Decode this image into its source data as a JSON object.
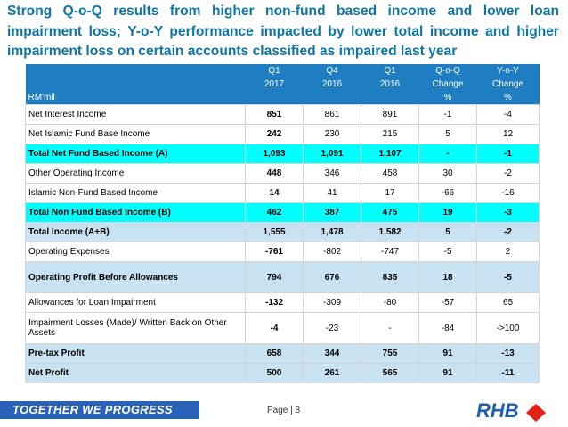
{
  "slide": {
    "title": "Strong Q-o-Q results from higher non-fund based income and lower loan impairment loss; Y-o-Y performance impacted by lower total income and higher impairment loss on certain accounts classified as impaired last year",
    "table": {
      "unit": "RM'mil",
      "header_rows": [
        [
          "Q1",
          "Q4",
          "Q1",
          "Q-o-Q",
          "Y-o-Y"
        ],
        [
          "2017",
          "2016",
          "2016",
          "Change",
          "Change"
        ]
      ],
      "pct_row": [
        "%",
        "%"
      ],
      "rows": [
        {
          "label": "Net Interest Income",
          "values": [
            "851",
            "861",
            "891",
            "-1",
            "-4"
          ]
        },
        {
          "label": "Net Islamic Fund Base Income",
          "values": [
            "242",
            "230",
            "215",
            "5",
            "12"
          ]
        },
        {
          "label": "Total Net Fund Based Income (A)",
          "values": [
            "1,093",
            "1,091",
            "1,107",
            "-",
            "-1"
          ]
        },
        {
          "label": "Other Operating Income",
          "values": [
            "448",
            "346",
            "458",
            "30",
            "-2"
          ]
        },
        {
          "label": "Islamic Non-Fund Based Income",
          "values": [
            "14",
            "41",
            "17",
            "-66",
            "-16"
          ]
        },
        {
          "label": "Total Non Fund Based Income (B)",
          "values": [
            "462",
            "387",
            "475",
            "19",
            "-3"
          ]
        },
        {
          "label": "Total Income (A+B)",
          "values": [
            "1,555",
            "1,478",
            "1,582",
            "5",
            "-2"
          ]
        },
        {
          "label": "Operating Expenses",
          "values": [
            "-761",
            "-802",
            "-747",
            "-5",
            "2"
          ]
        },
        {
          "label": "Operating Profit Before Allowances",
          "values": [
            "794",
            "676",
            "835",
            "18",
            "-5"
          ]
        },
        {
          "label": "Allowances for Loan Impairment",
          "values": [
            "-132",
            "-309",
            "-80",
            "-57",
            "65"
          ]
        },
        {
          "label": "Impairment Losses (Made)/ Written Back on Other Assets",
          "values": [
            "-4",
            "-23",
            "-",
            "-84",
            "->100"
          ]
        },
        {
          "label": "Pre-tax Profit",
          "values": [
            "658",
            "344",
            "755",
            "91",
            "-13"
          ]
        },
        {
          "label": "Net Profit",
          "values": [
            "500",
            "261",
            "565",
            "91",
            "-11"
          ]
        }
      ]
    },
    "footer": {
      "tagline": "TOGETHER WE PROGRESS",
      "page": "Page | 8",
      "logo": "RHB"
    }
  }
}
